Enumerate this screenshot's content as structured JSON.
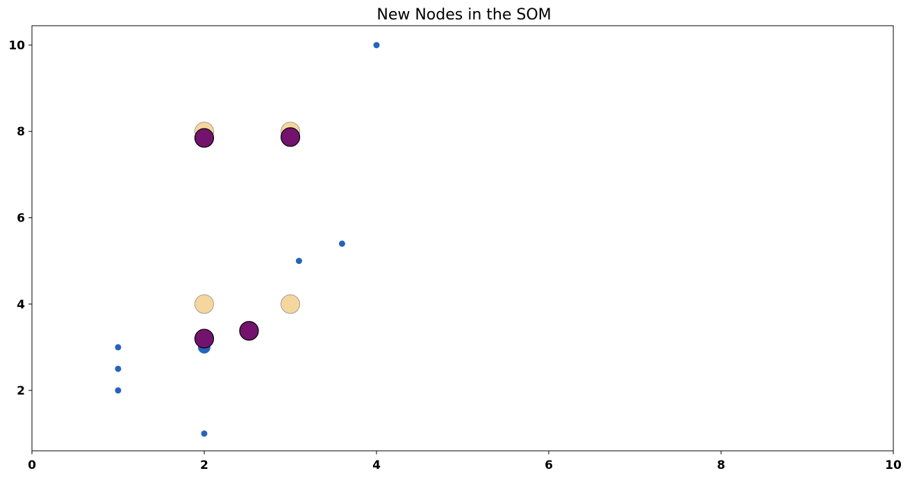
{
  "chart_data": {
    "type": "scatter",
    "title": "New Nodes in the SOM",
    "xlabel": "",
    "ylabel": "",
    "xlim": [
      0,
      10
    ],
    "ylim": [
      0.6,
      10.45
    ],
    "xticks": [
      0,
      2,
      4,
      6,
      8,
      10
    ],
    "yticks": [
      2,
      4,
      6,
      8,
      10
    ],
    "grid": false,
    "legend": "none",
    "series": [
      {
        "marker": "small-dot",
        "color": "#2563bd",
        "points": [
          {
            "x": 4,
            "y": 10
          },
          {
            "x": 3.6,
            "y": 5.4
          },
          {
            "x": 3.1,
            "y": 5
          },
          {
            "x": 1,
            "y": 3
          },
          {
            "x": 1,
            "y": 2.5
          },
          {
            "x": 1,
            "y": 2
          },
          {
            "x": 2,
            "y": 1
          }
        ]
      },
      {
        "marker": "medium-dot",
        "color": "#2563bd",
        "points": [
          {
            "x": 2,
            "y": 3
          }
        ]
      },
      {
        "marker": "large-circle",
        "color": "#f5d69c",
        "edge": "#8a8a8a",
        "points": [
          {
            "x": 2,
            "y": 8
          },
          {
            "x": 3,
            "y": 8
          },
          {
            "x": 2,
            "y": 4
          },
          {
            "x": 3,
            "y": 4
          }
        ]
      },
      {
        "marker": "large-circle",
        "color": "#74136e",
        "edge": "#000000",
        "points": [
          {
            "x": 2,
            "y": 7.85
          },
          {
            "x": 3,
            "y": 7.87
          },
          {
            "x": 2,
            "y": 3.2
          },
          {
            "x": 2.52,
            "y": 3.38
          }
        ]
      }
    ]
  }
}
